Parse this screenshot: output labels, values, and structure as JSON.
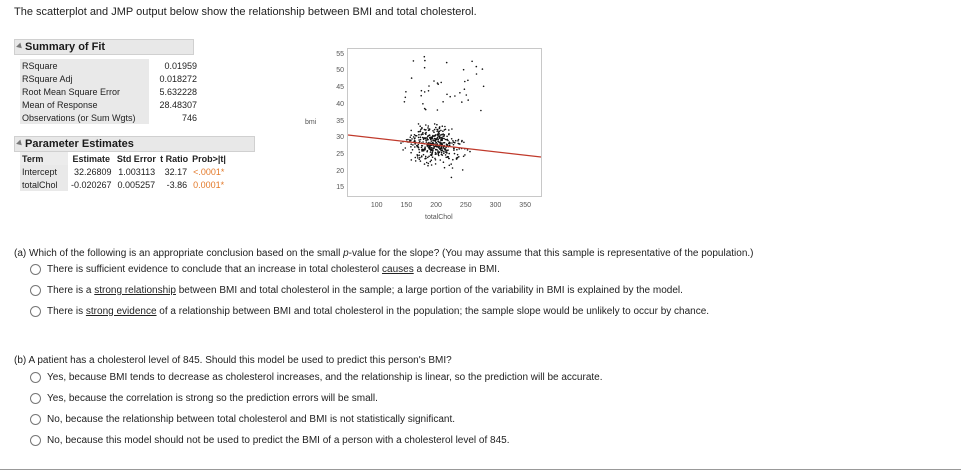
{
  "intro": "The scatterplot and JMP output below show the relationship between BMI and total cholesterol.",
  "summary_of_fit": {
    "title": "Summary of Fit",
    "rows": [
      {
        "label": "RSquare",
        "value": "0.01959"
      },
      {
        "label": "RSquare Adj",
        "value": "0.018272"
      },
      {
        "label": "Root Mean Square Error",
        "value": "5.632228"
      },
      {
        "label": "Mean of Response",
        "value": "28.48307"
      },
      {
        "label": "Observations (or Sum Wgts)",
        "value": "746"
      }
    ]
  },
  "parameter_estimates": {
    "title": "Parameter Estimates",
    "headers": [
      "Term",
      "Estimate",
      "Std Error",
      "t Ratio",
      "Prob>|t|"
    ],
    "rows": [
      {
        "term": "Intercept",
        "estimate": "32.26809",
        "std_error": "1.003113",
        "t_ratio": "32.17",
        "prob": "<.0001*"
      },
      {
        "term": "totalChol",
        "estimate": "-0.020267",
        "std_error": "0.005257",
        "t_ratio": "-3.86",
        "prob": "0.0001*"
      }
    ]
  },
  "chart_data": {
    "type": "scatter",
    "xlabel": "totalChol",
    "ylabel": "bmi",
    "xlim": [
      50,
      375
    ],
    "ylim": [
      13,
      57
    ],
    "x_ticks": [
      100,
      150,
      200,
      250,
      300,
      350
    ],
    "y_ticks": [
      15,
      20,
      25,
      30,
      35,
      40,
      45,
      50,
      55
    ],
    "fit_line": {
      "intercept": 32.26809,
      "slope": -0.020267,
      "color": "#c0392b"
    },
    "point_color": "#111111",
    "grid": false
  },
  "question_a": {
    "prefix": "(a) Which of the following is an appropriate conclusion based on the small ",
    "italic": "p",
    "suffix": "-value for the slope? (You may assume that this sample is representative of the population.)",
    "options": [
      {
        "before": "There is sufficient evidence to conclude that an increase in total cholesterol ",
        "underlined": "causes",
        "after": " a decrease in BMI."
      },
      {
        "before": "There is a ",
        "underlined": "strong relationship",
        "after": " between BMI and total cholesterol in the sample; a large portion of the variability in BMI is explained by the model."
      },
      {
        "before": "There is ",
        "underlined": "strong evidence",
        "after": " of a relationship between BMI and total cholesterol in the population; the sample slope would be unlikely to occur by chance."
      }
    ]
  },
  "question_b": {
    "text": "(b) A patient has a cholesterol level of 845. Should this model be used to predict this person's BMI?",
    "options": [
      "Yes, because BMI tends to decrease as cholesterol increases, and the relationship is linear, so the prediction will be accurate.",
      "Yes, because the correlation is strong so the prediction errors will be small.",
      "No, because the relationship between total cholesterol and BMI is not statistically significant.",
      "No, because this model should not be used to predict the BMI of a person with a cholesterol level of 845."
    ]
  }
}
